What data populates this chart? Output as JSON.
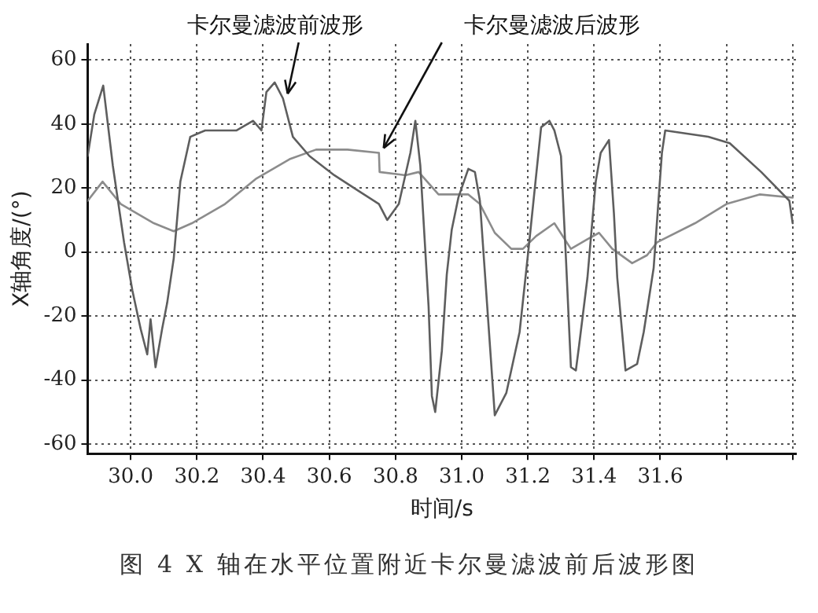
{
  "chart_data": {
    "type": "line",
    "title": "图 4  X 轴在水平位置附近卡尔曼滤波前后波形图",
    "xlabel": "时间/s",
    "ylabel": "X轴角度/(°)",
    "xlim": [
      29.87,
      32.01
    ],
    "xticks": [
      {
        "value": 30.0,
        "label": "30.0"
      },
      {
        "value": 30.2,
        "label": "30.2"
      },
      {
        "value": 30.4,
        "label": "30.4"
      },
      {
        "value": 30.6,
        "label": "30.6"
      },
      {
        "value": 30.8,
        "label": "30.8"
      },
      {
        "value": 31.0,
        "label": "31.0"
      },
      {
        "value": 31.2,
        "label": "31.2"
      },
      {
        "value": 31.4,
        "label": "31.4"
      },
      {
        "value": 31.6,
        "label": "31.6"
      },
      {
        "value": 31.8,
        "label": null
      },
      {
        "value": 32.0,
        "label": null
      }
    ],
    "ylim": [
      -63,
      65
    ],
    "yticks": [
      -60,
      -40,
      -20,
      0,
      20,
      40,
      60
    ],
    "grid": true,
    "legend": false,
    "marker": "none",
    "line_style": "solid",
    "annotations": [
      {
        "text": "卡尔曼滤波前波形",
        "x": 30.46,
        "y": 48
      },
      {
        "text": "卡尔曼滤波后波形",
        "x": 30.75,
        "y": 31
      }
    ],
    "series": [
      {
        "color": "#5e5e5e",
        "x": [
          29.87,
          29.89,
          29.917,
          29.946,
          29.98,
          30.005,
          30.03,
          30.05,
          30.06,
          30.075,
          30.095,
          30.11,
          30.13,
          30.15,
          30.18,
          30.225,
          30.32,
          30.37,
          30.395,
          30.41,
          30.435,
          30.46,
          30.49,
          30.54,
          30.615,
          30.69,
          30.75,
          30.775,
          30.81,
          30.845,
          30.86,
          30.875,
          30.9,
          30.91,
          30.92,
          30.94,
          30.955,
          30.97,
          30.99,
          31.02,
          31.04,
          31.055,
          31.1,
          31.135,
          31.175,
          31.2,
          31.24,
          31.265,
          31.28,
          31.3,
          31.315,
          31.33,
          31.345,
          31.355,
          31.38,
          31.405,
          31.42,
          31.445,
          31.46,
          31.47,
          31.495,
          31.53,
          31.55,
          31.58,
          31.605,
          31.615,
          31.745,
          31.81,
          31.905,
          31.99,
          32.0
        ],
        "values": [
          30,
          43,
          52,
          27,
          3,
          -12,
          -24,
          -32,
          -21,
          -36,
          -24,
          -16,
          -2,
          22,
          36,
          38,
          38,
          41,
          38,
          50,
          53,
          48,
          36,
          30,
          24,
          19,
          15,
          10,
          15,
          31,
          41,
          27,
          -17,
          -45,
          -50,
          -31,
          -7,
          7,
          17,
          26,
          25,
          16,
          -51,
          -44,
          -25,
          -1,
          39,
          41,
          38,
          30,
          -2,
          -36,
          -37,
          -29,
          -8,
          22,
          31,
          35,
          12,
          -8,
          -37,
          -35,
          -25,
          -5,
          31,
          38,
          36,
          34,
          25,
          16,
          9
        ]
      },
      {
        "color": "#8c8c8c",
        "x": [
          29.87,
          29.915,
          29.97,
          30.07,
          30.13,
          30.185,
          30.285,
          30.38,
          30.48,
          30.56,
          30.655,
          30.75,
          30.752,
          30.83,
          30.87,
          30.93,
          31.02,
          31.055,
          31.1,
          31.15,
          31.185,
          31.225,
          31.28,
          31.33,
          31.38,
          31.415,
          31.455,
          31.515,
          31.56,
          31.59,
          31.705,
          31.8,
          31.9,
          32.0
        ],
        "values": [
          16,
          22,
          15,
          9,
          6.5,
          9,
          15,
          23,
          29,
          32,
          32,
          31,
          25,
          24,
          25,
          18,
          18,
          15,
          6,
          1,
          1,
          5,
          9,
          1,
          4,
          6,
          1,
          -3.5,
          -1,
          3,
          9,
          15,
          18,
          17
        ]
      }
    ]
  }
}
